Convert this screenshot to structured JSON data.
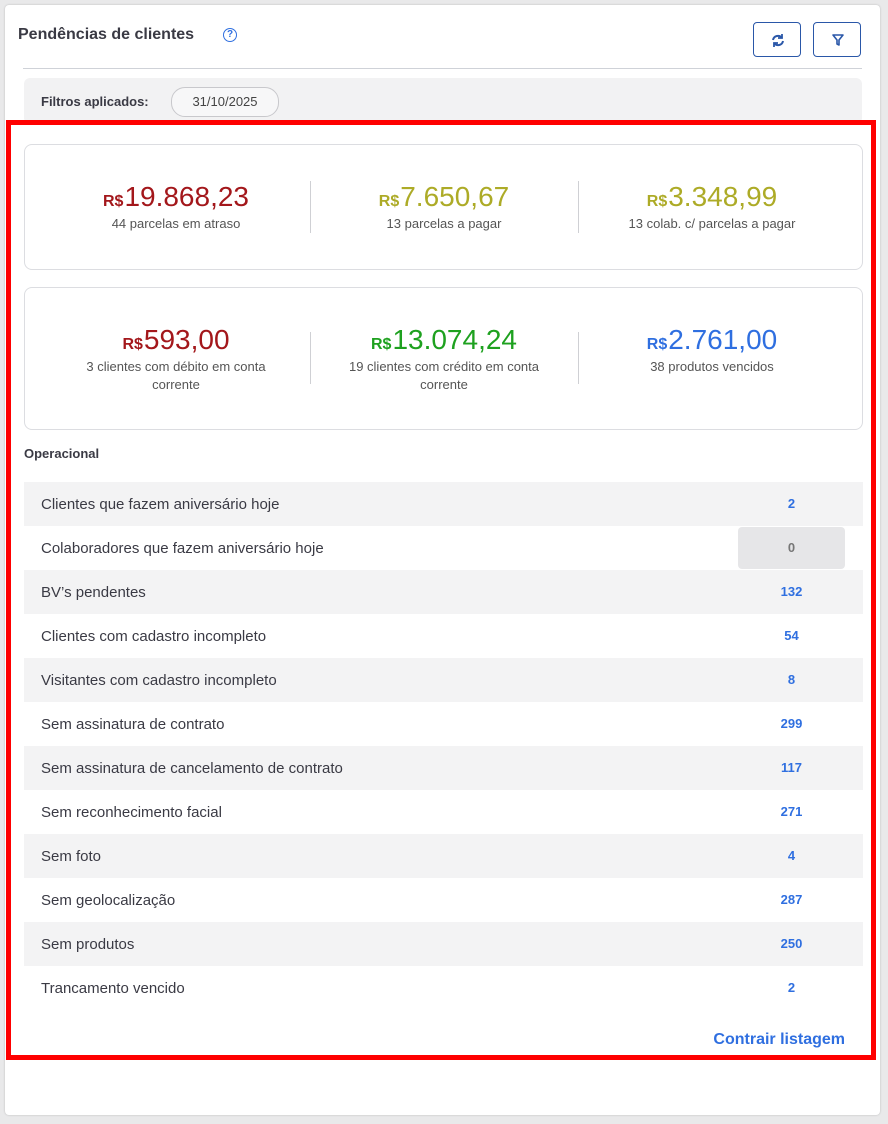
{
  "header": {
    "title": "Pendências de clientes"
  },
  "filters": {
    "label": "Filtros aplicados:",
    "chips": [
      "31/10/2025"
    ]
  },
  "summary": [
    [
      {
        "currency": "R$",
        "amount": "19.868,23",
        "caption": "44 parcelas em atraso"
      },
      {
        "currency": "R$",
        "amount": "7.650,67",
        "caption": "13 parcelas a pagar"
      },
      {
        "currency": "R$",
        "amount": "3.348,99",
        "caption": "13 colab. c/ parcelas a pagar"
      }
    ],
    [
      {
        "currency": "R$",
        "amount": "593,00",
        "caption": "3 clientes com débito em conta corrente"
      },
      {
        "currency": "R$",
        "amount": "13.074,24",
        "caption": "19 clientes com crédito em conta corrente"
      },
      {
        "currency": "R$",
        "amount": "2.761,00",
        "caption": "38 produtos vencidos"
      }
    ]
  ],
  "operational": {
    "title": "Operacional",
    "rows": [
      [
        "Clientes que fazem aniversário hoje",
        "2"
      ],
      [
        "Colaboradores que fazem aniversário hoje",
        "0"
      ],
      [
        "BV’s pendentes",
        "132"
      ],
      [
        "Clientes com cadastro incompleto",
        "54"
      ],
      [
        "Visitantes com cadastro incompleto",
        "8"
      ],
      [
        "Sem assinatura de contrato",
        "299"
      ],
      [
        "Sem assinatura de cancelamento de contrato",
        "117"
      ],
      [
        "Sem reconhecimento facial",
        "271"
      ],
      [
        "Sem foto",
        "4"
      ],
      [
        "Sem geolocalização",
        "287"
      ],
      [
        "Sem produtos",
        "250"
      ],
      [
        "Trancamento vencido",
        "2"
      ]
    ],
    "collapse": "Contrair listagem"
  }
}
